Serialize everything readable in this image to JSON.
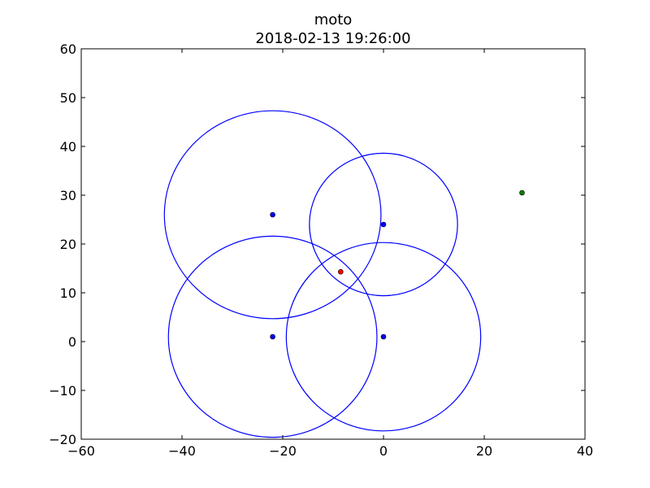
{
  "chart_data": {
    "type": "scatter",
    "title": "moto",
    "subtitle": "2018-02-13 19:26:00",
    "xlabel": "",
    "ylabel": "",
    "xlim": [
      -60,
      40
    ],
    "ylim": [
      -20,
      60
    ],
    "x_ticks": [
      -60,
      -40,
      -20,
      0,
      20,
      40
    ],
    "y_ticks": [
      -20,
      -10,
      0,
      10,
      20,
      30,
      40,
      50,
      60
    ],
    "x_tick_labels": [
      "−60",
      "−40",
      "−20",
      "0",
      "20",
      "40"
    ],
    "y_tick_labels": [
      "−20",
      "−10",
      "0",
      "10",
      "20",
      "30",
      "40",
      "50",
      "60"
    ],
    "grid": false,
    "circles": [
      {
        "cx": -22,
        "cy": 26,
        "rx": 21.5,
        "ry": 21.3
      },
      {
        "cx": 0,
        "cy": 24,
        "rx": 14.7,
        "ry": 14.6
      },
      {
        "cx": -22,
        "cy": 1,
        "rx": 20.7,
        "ry": 20.6
      },
      {
        "cx": 0,
        "cy": 1,
        "rx": 19.3,
        "ry": 19.3
      }
    ],
    "series": [
      {
        "color": "#0000ff",
        "points": [
          [
            -22,
            26
          ],
          [
            0,
            24
          ],
          [
            -22,
            1
          ],
          [
            0,
            1
          ]
        ]
      },
      {
        "color": "#ff0000",
        "points": [
          [
            -8.5,
            14.3
          ]
        ]
      },
      {
        "color": "#008000",
        "points": [
          [
            27.5,
            30.5
          ]
        ]
      }
    ],
    "circle_color": "#0000ff"
  }
}
